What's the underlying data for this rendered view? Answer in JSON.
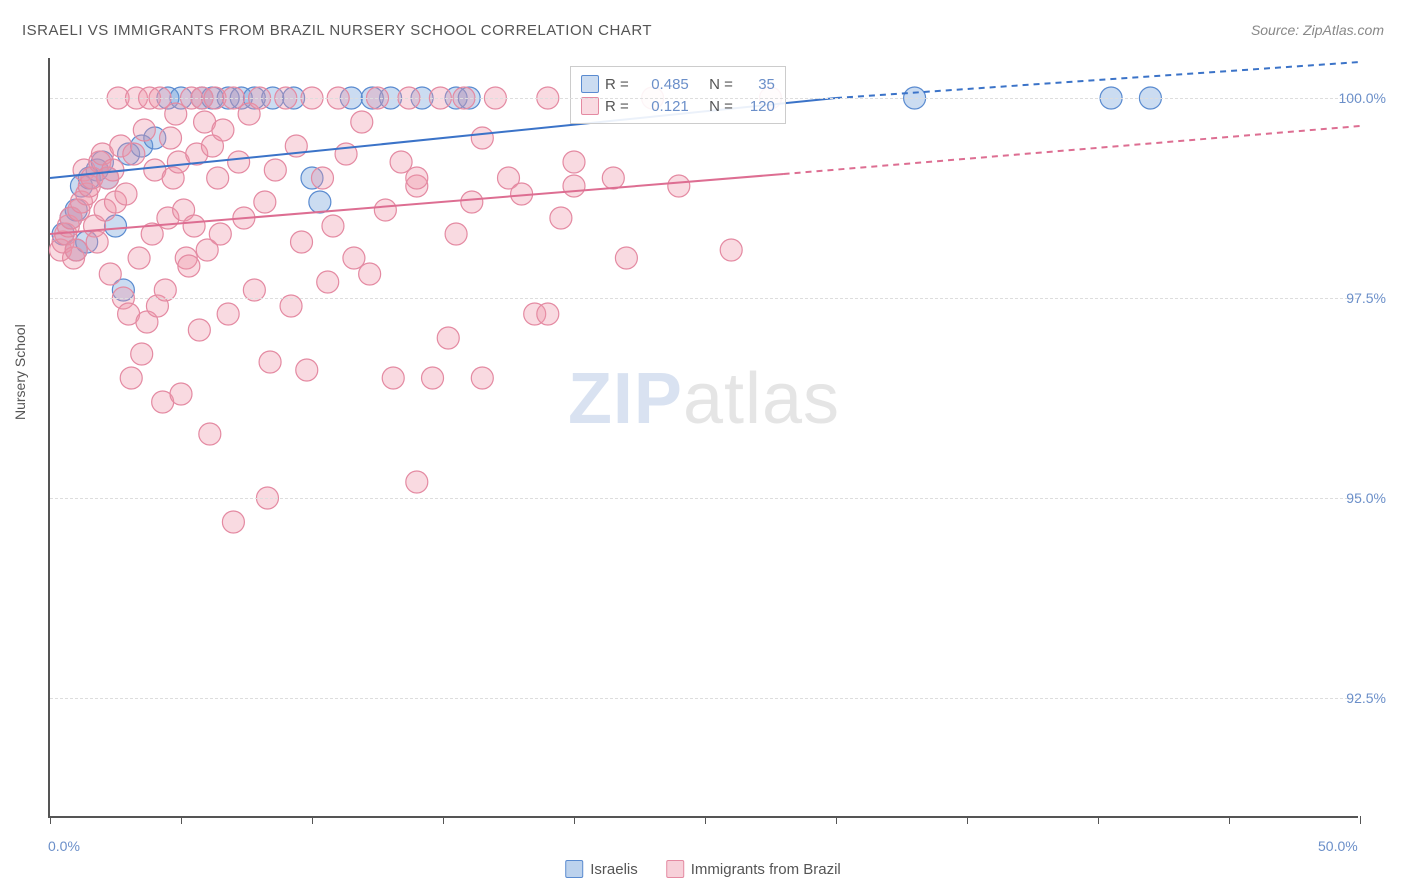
{
  "title": "ISRAELI VS IMMIGRANTS FROM BRAZIL NURSERY SCHOOL CORRELATION CHART",
  "source": "Source: ZipAtlas.com",
  "y_axis_label": "Nursery School",
  "watermark_zip": "ZIP",
  "watermark_atlas": "atlas",
  "chart": {
    "type": "scatter",
    "background_color": "#ffffff",
    "grid_color": "#dddddd",
    "axis_color": "#555555",
    "xlim": [
      0,
      50
    ],
    "ylim": [
      91.0,
      100.5
    ],
    "x_ticks": [
      0,
      5,
      10,
      15,
      20,
      25,
      30,
      35,
      40,
      45,
      50
    ],
    "x_tick_labels": {
      "0": "0.0%",
      "50": "50.0%"
    },
    "y_ticks": [
      92.5,
      95.0,
      97.5,
      100.0
    ],
    "y_tick_labels": [
      "92.5%",
      "95.0%",
      "97.5%",
      "100.0%"
    ],
    "label_color": "#6b8fc9",
    "label_fontsize": 14,
    "title_fontsize": 15,
    "title_color": "#555555",
    "series": [
      {
        "name": "Israelis",
        "color_fill": "rgba(107,155,216,0.35)",
        "color_stroke": "#5a8bd0",
        "marker_radius": 11,
        "r_value": "0.485",
        "n_value": "35",
        "trend": {
          "x1": 0,
          "y1": 99.0,
          "x2": 30,
          "y2": 100.0,
          "dash_after_x": 30,
          "x2_dash": 50,
          "y2_dash": 100.45,
          "color": "#3b73c8",
          "width": 2
        },
        "points": [
          [
            0.5,
            98.3
          ],
          [
            0.8,
            98.5
          ],
          [
            1.0,
            98.6
          ],
          [
            1.2,
            98.9
          ],
          [
            1.5,
            99.0
          ],
          [
            1.8,
            99.1
          ],
          [
            2.0,
            99.2
          ],
          [
            2.2,
            99.0
          ],
          [
            1.0,
            98.1
          ],
          [
            1.4,
            98.2
          ],
          [
            2.5,
            98.4
          ],
          [
            3.0,
            99.3
          ],
          [
            3.5,
            99.4
          ],
          [
            2.8,
            97.6
          ],
          [
            4.0,
            99.5
          ],
          [
            4.5,
            100.0
          ],
          [
            5.0,
            100.0
          ],
          [
            5.8,
            100.0
          ],
          [
            6.2,
            100.0
          ],
          [
            6.8,
            100.0
          ],
          [
            7.3,
            100.0
          ],
          [
            7.8,
            100.0
          ],
          [
            8.5,
            100.0
          ],
          [
            9.3,
            100.0
          ],
          [
            10.0,
            99.0
          ],
          [
            11.5,
            100.0
          ],
          [
            12.3,
            100.0
          ],
          [
            13.0,
            100.0
          ],
          [
            14.2,
            100.0
          ],
          [
            15.5,
            100.0
          ],
          [
            16.0,
            100.0
          ],
          [
            10.3,
            98.7
          ],
          [
            33.0,
            100.0
          ],
          [
            40.5,
            100.0
          ],
          [
            42.0,
            100.0
          ]
        ]
      },
      {
        "name": "Immigrants from Brazil",
        "color_fill": "rgba(238,150,170,0.35)",
        "color_stroke": "#e48aa2",
        "marker_radius": 11,
        "r_value": "0.121",
        "n_value": "120",
        "trend": {
          "x1": 0,
          "y1": 98.3,
          "x2": 28,
          "y2": 99.05,
          "dash_after_x": 28,
          "x2_dash": 50,
          "y2_dash": 99.65,
          "color": "#dd6e92",
          "width": 2
        },
        "points": [
          [
            0.4,
            98.1
          ],
          [
            0.5,
            98.2
          ],
          [
            0.6,
            98.3
          ],
          [
            0.7,
            98.4
          ],
          [
            0.8,
            98.5
          ],
          [
            0.9,
            98.0
          ],
          [
            1.0,
            98.1
          ],
          [
            1.1,
            98.6
          ],
          [
            1.2,
            98.7
          ],
          [
            1.3,
            99.1
          ],
          [
            1.4,
            98.8
          ],
          [
            1.5,
            98.9
          ],
          [
            1.6,
            99.0
          ],
          [
            1.7,
            98.4
          ],
          [
            1.8,
            98.2
          ],
          [
            1.9,
            99.2
          ],
          [
            2.0,
            99.3
          ],
          [
            2.1,
            98.6
          ],
          [
            2.2,
            99.0
          ],
          [
            2.3,
            97.8
          ],
          [
            2.4,
            99.1
          ],
          [
            2.5,
            98.7
          ],
          [
            2.6,
            100.0
          ],
          [
            2.7,
            99.4
          ],
          [
            2.8,
            97.5
          ],
          [
            2.9,
            98.8
          ],
          [
            3.0,
            97.3
          ],
          [
            3.1,
            96.5
          ],
          [
            3.2,
            99.3
          ],
          [
            3.3,
            100.0
          ],
          [
            3.4,
            98.0
          ],
          [
            3.5,
            96.8
          ],
          [
            3.6,
            99.6
          ],
          [
            3.7,
            97.2
          ],
          [
            3.8,
            100.0
          ],
          [
            3.9,
            98.3
          ],
          [
            4.0,
            99.1
          ],
          [
            4.1,
            97.4
          ],
          [
            4.2,
            100.0
          ],
          [
            4.3,
            96.2
          ],
          [
            4.4,
            97.6
          ],
          [
            4.5,
            98.5
          ],
          [
            4.6,
            99.5
          ],
          [
            4.7,
            99.0
          ],
          [
            4.8,
            99.8
          ],
          [
            4.9,
            99.2
          ],
          [
            5.0,
            96.3
          ],
          [
            5.1,
            98.6
          ],
          [
            5.2,
            98.0
          ],
          [
            5.3,
            97.9
          ],
          [
            5.4,
            100.0
          ],
          [
            5.5,
            98.4
          ],
          [
            5.6,
            99.3
          ],
          [
            5.7,
            97.1
          ],
          [
            5.8,
            100.0
          ],
          [
            5.9,
            99.7
          ],
          [
            6.0,
            98.1
          ],
          [
            6.1,
            95.8
          ],
          [
            6.2,
            99.4
          ],
          [
            6.3,
            100.0
          ],
          [
            6.4,
            99.0
          ],
          [
            6.5,
            98.3
          ],
          [
            6.6,
            99.6
          ],
          [
            6.8,
            97.3
          ],
          [
            7.0,
            100.0
          ],
          [
            7.2,
            99.2
          ],
          [
            7.4,
            98.5
          ],
          [
            7.6,
            99.8
          ],
          [
            7.8,
            97.6
          ],
          [
            8.0,
            100.0
          ],
          [
            8.2,
            98.7
          ],
          [
            8.4,
            96.7
          ],
          [
            8.6,
            99.1
          ],
          [
            8.3,
            95.0
          ],
          [
            9.0,
            100.0
          ],
          [
            9.2,
            97.4
          ],
          [
            9.4,
            99.4
          ],
          [
            9.6,
            98.2
          ],
          [
            9.8,
            96.6
          ],
          [
            10.0,
            100.0
          ],
          [
            7.0,
            94.7
          ],
          [
            10.4,
            99.0
          ],
          [
            10.6,
            97.7
          ],
          [
            10.8,
            98.4
          ],
          [
            11.0,
            100.0
          ],
          [
            11.3,
            99.3
          ],
          [
            11.6,
            98.0
          ],
          [
            11.9,
            99.7
          ],
          [
            12.2,
            97.8
          ],
          [
            12.5,
            100.0
          ],
          [
            12.8,
            98.6
          ],
          [
            13.1,
            96.5
          ],
          [
            13.4,
            99.2
          ],
          [
            13.7,
            100.0
          ],
          [
            14.0,
            98.9
          ],
          [
            14.0,
            99.0
          ],
          [
            14.6,
            96.5
          ],
          [
            14.9,
            100.0
          ],
          [
            15.2,
            97.0
          ],
          [
            15.5,
            98.3
          ],
          [
            15.8,
            100.0
          ],
          [
            16.1,
            98.7
          ],
          [
            16.5,
            99.5
          ],
          [
            17.0,
            100.0
          ],
          [
            17.5,
            99.0
          ],
          [
            18.0,
            98.8
          ],
          [
            18.5,
            97.3
          ],
          [
            19.0,
            100.0
          ],
          [
            19.5,
            98.5
          ],
          [
            20.0,
            99.2
          ],
          [
            16.5,
            96.5
          ],
          [
            21.5,
            99.0
          ],
          [
            22.0,
            98.0
          ],
          [
            23.0,
            100.0
          ],
          [
            24.0,
            98.9
          ],
          [
            14.0,
            95.2
          ],
          [
            26.0,
            98.1
          ],
          [
            27.5,
            100.0
          ],
          [
            20.0,
            98.9
          ],
          [
            19.0,
            97.3
          ]
        ]
      }
    ],
    "legend": {
      "r_label": "R =",
      "n_label": "N ="
    },
    "bottom_legend": [
      {
        "label": "Israelis",
        "fill": "rgba(107,155,216,0.45)",
        "stroke": "#5a8bd0"
      },
      {
        "label": "Immigrants from Brazil",
        "fill": "rgba(238,150,170,0.45)",
        "stroke": "#e48aa2"
      }
    ]
  }
}
